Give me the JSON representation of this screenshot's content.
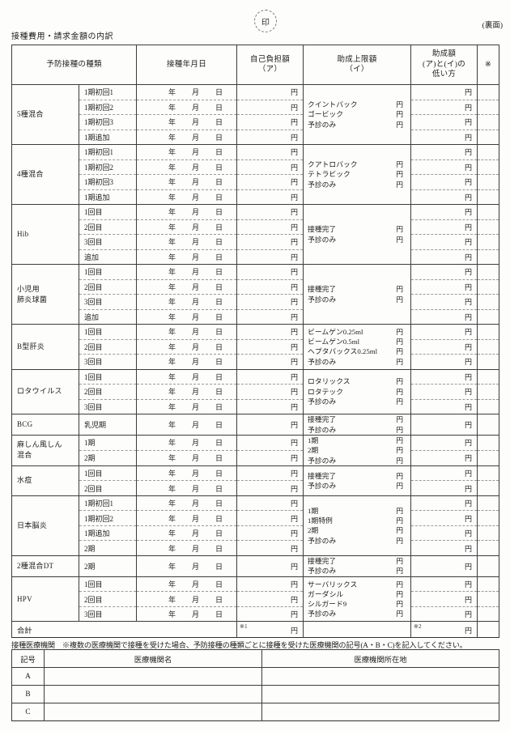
{
  "page": {
    "stamp": "印",
    "back_label": "(裏面)",
    "title": "接種費用・請求金額の内訳"
  },
  "main_table": {
    "headers": {
      "vaccine_type": "予防接種の種類",
      "date": "接種年月日",
      "self_pay": "自己負担額\n（ア）",
      "subsidy_limit": "助成上限額\n（イ）",
      "subsidy_result": "助成額\n(ア)と(イ)の\n低い方",
      "note_mark": "※"
    },
    "yen": "円",
    "date_parts": [
      "年",
      "月",
      "日"
    ],
    "groups": [
      {
        "vaccine": "5種混合",
        "doses": [
          "1期初回1",
          "1期初回2",
          "1期初回3",
          "1期追加"
        ],
        "subsidy_items": [
          "クイントバック",
          "ゴービック",
          "予診のみ"
        ]
      },
      {
        "vaccine": "4種混合",
        "doses": [
          "1期初回1",
          "1期初回2",
          "1期初回3",
          "1期追加"
        ],
        "subsidy_items": [
          "クアトロバック",
          "テトラビック",
          "予診のみ"
        ]
      },
      {
        "vaccine": "Hib",
        "doses": [
          "1回目",
          "2回目",
          "3回目",
          "追加"
        ],
        "subsidy_items": [
          "接種完了",
          "予診のみ"
        ]
      },
      {
        "vaccine": "小児用\n肺炎球菌",
        "doses": [
          "1回目",
          "2回目",
          "3回目",
          "追加"
        ],
        "subsidy_items": [
          "接種完了",
          "予診のみ"
        ]
      },
      {
        "vaccine": "B型肝炎",
        "doses": [
          "1回目",
          "2回目",
          "3回目"
        ],
        "subsidy_items": [
          "ビームゲン0.25ml",
          "ビームゲン0.5ml",
          "ヘプタバックス0.25ml",
          "予診のみ"
        ]
      },
      {
        "vaccine": "ロタウイルス",
        "doses": [
          "1回目",
          "2回目",
          "3回目"
        ],
        "subsidy_items": [
          "ロタリックス",
          "ロタテック",
          "予診のみ"
        ]
      },
      {
        "vaccine": "BCG",
        "doses": [
          "乳児期"
        ],
        "subsidy_items": [
          "接種完了",
          "予診のみ"
        ]
      },
      {
        "vaccine": "麻しん風しん\n混合",
        "doses": [
          "1期",
          "2期"
        ],
        "subsidy_items": [
          "1期",
          "2期",
          "予診のみ"
        ]
      },
      {
        "vaccine": "水痘",
        "doses": [
          "1回目",
          "2回目"
        ],
        "subsidy_items": [
          "接種完了",
          "予診のみ"
        ]
      },
      {
        "vaccine": "日本脳炎",
        "doses": [
          "1期初回1",
          "1期初回2",
          "1期追加",
          "2期"
        ],
        "subsidy_items": [
          "1期",
          "1期特例",
          "2期",
          "予診のみ"
        ]
      },
      {
        "vaccine": "2種混合DT",
        "doses": [
          "2期"
        ],
        "subsidy_items": [
          "接種完了",
          "予診のみ"
        ]
      },
      {
        "vaccine": "HPV",
        "doses": [
          "1回目",
          "2回目",
          "3回目"
        ],
        "subsidy_items": [
          "サーバリックス",
          "ガーダシル",
          "シルガード9",
          "予診のみ"
        ]
      }
    ],
    "total_row": {
      "label": "合計",
      "self_pay_mark": "※1",
      "subsidy_mark": "※2"
    }
  },
  "medical_section": {
    "note": "接種医療機関　※複数の医療機関で接種を受けた場合、予防接種の種類ごとに接種を受けた医療機関の記号(A・B・C)を記入してください。",
    "table": {
      "headers": {
        "code": "記号",
        "name": "医療機関名",
        "address": "医療機関所在地"
      },
      "rows": [
        {
          "code": "A",
          "name": "",
          "address": ""
        },
        {
          "code": "B",
          "name": "",
          "address": ""
        },
        {
          "code": "C",
          "name": "",
          "address": ""
        }
      ]
    }
  }
}
